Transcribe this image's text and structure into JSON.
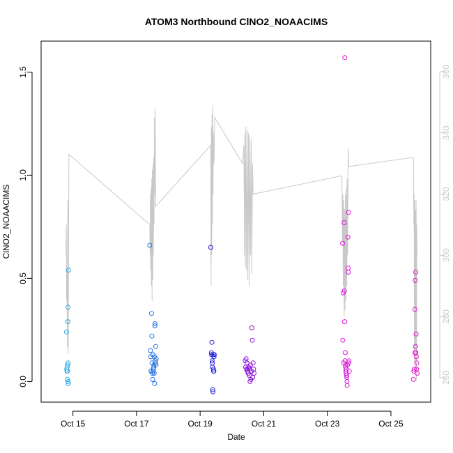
{
  "chart_data": {
    "type": "scatter",
    "title": "ATOM3 Northbound ClNO2_NOAACIMS",
    "xlabel": "Date",
    "ylabel": "ClNO2_NOAACIMS",
    "xlim": [
      "2017-10-14T00:00",
      "2017-10-26T06:00"
    ],
    "ylim": [
      -0.1,
      1.65
    ],
    "y_ticks": [
      0.0,
      0.5,
      1.0,
      1.5
    ],
    "x_ticks": [
      {
        "date": "2017-10-15",
        "label": "Oct 15"
      },
      {
        "date": "2017-10-17",
        "label": "Oct 17"
      },
      {
        "date": "2017-10-19",
        "label": "Oct 19"
      },
      {
        "date": "2017-10-21",
        "label": "Oct 21"
      },
      {
        "date": "2017-10-23",
        "label": "Oct 23"
      },
      {
        "date": "2017-10-25",
        "label": "Oct 25"
      }
    ],
    "grid": false,
    "secondary_axis": {
      "color": "#c8c8c8",
      "ylim": [
        252,
        370
      ],
      "ticks": [
        260,
        280,
        300,
        320,
        340,
        360
      ]
    },
    "flights": [
      {
        "color": "#2aa7e6",
        "points": [
          [
            "2017-10-14T19:10",
            0.24
          ],
          [
            "2017-10-14T19:20",
            0.06
          ],
          [
            "2017-10-14T19:30",
            0.05
          ],
          [
            "2017-10-14T19:40",
            0.07
          ],
          [
            "2017-10-14T19:45",
            0.01
          ],
          [
            "2017-10-14T19:50",
            0.05
          ],
          [
            "2017-10-14T20:00",
            0.08
          ],
          [
            "2017-10-14T20:10",
            0.29
          ],
          [
            "2017-10-14T20:15",
            0.36
          ],
          [
            "2017-10-14T20:20",
            0.09
          ],
          [
            "2017-10-14T20:25",
            0.0
          ],
          [
            "2017-10-14T20:30",
            -0.01
          ],
          [
            "2017-10-14T20:40",
            0.54
          ]
        ]
      },
      {
        "color": "#2270e0",
        "points": [
          [
            "2017-10-17T10:00",
            0.66
          ],
          [
            "2017-10-17T10:30",
            0.15
          ],
          [
            "2017-10-17T10:45",
            0.12
          ],
          [
            "2017-10-17T11:00",
            0.05
          ],
          [
            "2017-10-17T11:20",
            0.33
          ],
          [
            "2017-10-17T11:30",
            0.22
          ],
          [
            "2017-10-17T11:40",
            0.09
          ],
          [
            "2017-10-17T12:00",
            0.04
          ],
          [
            "2017-10-17T12:10",
            0.01
          ],
          [
            "2017-10-17T12:20",
            0.13
          ],
          [
            "2017-10-17T12:30",
            0.05
          ],
          [
            "2017-10-17T12:40",
            0.06
          ],
          [
            "2017-10-17T13:00",
            0.07
          ],
          [
            "2017-10-17T13:10",
            0.08
          ],
          [
            "2017-10-17T13:20",
            0.04
          ],
          [
            "2017-10-17T13:30",
            0.12
          ],
          [
            "2017-10-17T13:40",
            -0.01
          ],
          [
            "2017-10-17T13:50",
            0.27
          ],
          [
            "2017-10-17T14:00",
            0.28
          ],
          [
            "2017-10-17T14:10",
            0.1
          ],
          [
            "2017-10-17T14:20",
            0.09
          ],
          [
            "2017-10-17T14:30",
            0.17
          ],
          [
            "2017-10-17T14:40",
            0.08
          ],
          [
            "2017-10-17T14:50",
            0.11
          ]
        ]
      },
      {
        "color": "#2020d8",
        "points": [
          [
            "2017-10-19T08:00",
            0.65
          ],
          [
            "2017-10-19T08:30",
            0.14
          ],
          [
            "2017-10-19T08:40",
            0.13
          ],
          [
            "2017-10-19T08:50",
            0.19
          ],
          [
            "2017-10-19T09:00",
            0.1
          ],
          [
            "2017-10-19T09:10",
            0.09
          ],
          [
            "2017-10-19T09:20",
            0.07
          ],
          [
            "2017-10-19T09:30",
            -0.04
          ],
          [
            "2017-10-19T09:40",
            -0.05
          ],
          [
            "2017-10-19T09:50",
            0.13
          ],
          [
            "2017-10-19T10:00",
            0.06
          ],
          [
            "2017-10-19T10:10",
            0.05
          ],
          [
            "2017-10-19T10:20",
            0.05
          ],
          [
            "2017-10-19T10:30",
            0.12
          ],
          [
            "2017-10-19T10:40",
            0.13
          ]
        ]
      },
      {
        "color": "#8a14d8",
        "points": [
          [
            "2017-10-20T10:00",
            0.1
          ],
          [
            "2017-10-20T10:20",
            0.07
          ],
          [
            "2017-10-20T10:40",
            0.11
          ],
          [
            "2017-10-20T11:00",
            0.06
          ],
          [
            "2017-10-20T11:20",
            0.09
          ],
          [
            "2017-10-20T11:40",
            0.05
          ],
          [
            "2017-10-20T12:00",
            0.06
          ],
          [
            "2017-10-20T12:20",
            0.04
          ],
          [
            "2017-10-20T12:40",
            0.07
          ],
          [
            "2017-10-20T13:00",
            0.03
          ],
          [
            "2017-10-20T13:20",
            0.06
          ],
          [
            "2017-10-20T13:40",
            0.0
          ],
          [
            "2017-10-20T14:00",
            0.08
          ],
          [
            "2017-10-20T14:20",
            0.01
          ],
          [
            "2017-10-20T14:40",
            0.05
          ],
          [
            "2017-10-20T15:00",
            0.26
          ],
          [
            "2017-10-20T15:20",
            0.2
          ],
          [
            "2017-10-20T15:40",
            0.02
          ],
          [
            "2017-10-20T16:00",
            0.09
          ],
          [
            "2017-10-20T16:20",
            0.06
          ],
          [
            "2017-10-20T16:40",
            0.04
          ]
        ]
      },
      {
        "color": "#d814d8",
        "points": [
          [
            "2017-10-23T11:30",
            0.67
          ],
          [
            "2017-10-23T11:40",
            0.2
          ],
          [
            "2017-10-23T12:00",
            0.43
          ],
          [
            "2017-10-23T12:20",
            0.09
          ],
          [
            "2017-10-23T12:40",
            0.77
          ],
          [
            "2017-10-23T12:50",
            0.44
          ],
          [
            "2017-10-23T13:00",
            0.29
          ],
          [
            "2017-10-23T13:10",
            1.57
          ],
          [
            "2017-10-23T13:20",
            0.1
          ],
          [
            "2017-10-23T13:30",
            0.14
          ],
          [
            "2017-10-23T13:40",
            0.07
          ],
          [
            "2017-10-23T13:50",
            0.08
          ],
          [
            "2017-10-23T14:00",
            0.05
          ],
          [
            "2017-10-23T14:10",
            0.04
          ],
          [
            "2017-10-23T14:20",
            0.06
          ],
          [
            "2017-10-23T14:30",
            0.03
          ],
          [
            "2017-10-23T14:40",
            0.02
          ],
          [
            "2017-10-23T14:50",
            0.0
          ],
          [
            "2017-10-23T15:00",
            -0.02
          ],
          [
            "2017-10-23T15:20",
            0.08
          ],
          [
            "2017-10-23T15:30",
            0.7
          ],
          [
            "2017-10-23T15:40",
            0.55
          ],
          [
            "2017-10-23T15:50",
            0.53
          ],
          [
            "2017-10-23T16:00",
            0.82
          ],
          [
            "2017-10-23T16:10",
            0.09
          ],
          [
            "2017-10-23T16:20",
            0.1
          ],
          [
            "2017-10-23T16:30",
            0.05
          ]
        ]
      },
      {
        "color": "#e614d0",
        "points": [
          [
            "2017-10-25T17:00",
            0.01
          ],
          [
            "2017-10-25T17:20",
            0.05
          ],
          [
            "2017-10-25T17:40",
            0.06
          ],
          [
            "2017-10-25T18:00",
            0.35
          ],
          [
            "2017-10-25T18:10",
            0.14
          ],
          [
            "2017-10-25T18:20",
            0.49
          ],
          [
            "2017-10-25T18:30",
            0.17
          ],
          [
            "2017-10-25T18:40",
            0.53
          ],
          [
            "2017-10-25T18:50",
            0.14
          ],
          [
            "2017-10-25T19:00",
            0.23
          ],
          [
            "2017-10-25T19:10",
            0.12
          ],
          [
            "2017-10-25T19:20",
            0.06
          ],
          [
            "2017-10-25T19:30",
            0.09
          ],
          [
            "2017-10-25T19:40",
            0.04
          ]
        ]
      }
    ],
    "secondary_line": {
      "color": "#c8c8c8",
      "points": [
        [
          "2017-10-14T18:40",
          300
        ],
        [
          "2017-10-14T19:00",
          310
        ],
        [
          "2017-10-14T19:15",
          285
        ],
        [
          "2017-10-14T19:30",
          295
        ],
        [
          "2017-10-14T19:45",
          270
        ],
        [
          "2017-10-14T20:00",
          305
        ],
        [
          "2017-10-14T20:15",
          318
        ],
        [
          "2017-10-14T20:30",
          268
        ],
        [
          "2017-10-14T20:45",
          314
        ],
        [
          "2017-10-14T21:00",
          333
        ],
        [
          "2017-10-17T10:00",
          310
        ],
        [
          "2017-10-17T10:15",
          300
        ],
        [
          "2017-10-17T10:30",
          320
        ],
        [
          "2017-10-17T10:45",
          295
        ],
        [
          "2017-10-17T11:00",
          322
        ],
        [
          "2017-10-17T11:15",
          290
        ],
        [
          "2017-10-17T11:30",
          325
        ],
        [
          "2017-10-17T11:45",
          285
        ],
        [
          "2017-10-17T12:00",
          328
        ],
        [
          "2017-10-17T12:15",
          292
        ],
        [
          "2017-10-17T12:30",
          330
        ],
        [
          "2017-10-17T12:45",
          300
        ],
        [
          "2017-10-17T13:00",
          332
        ],
        [
          "2017-10-17T13:15",
          310
        ],
        [
          "2017-10-17T13:30",
          345
        ],
        [
          "2017-10-17T13:45",
          320
        ],
        [
          "2017-10-17T14:00",
          348
        ],
        [
          "2017-10-17T14:30",
          316
        ],
        [
          "2017-10-19T08:00",
          336
        ],
        [
          "2017-10-19T08:15",
          290
        ],
        [
          "2017-10-19T08:30",
          342
        ],
        [
          "2017-10-19T08:45",
          300
        ],
        [
          "2017-10-19T09:00",
          346
        ],
        [
          "2017-10-19T09:15",
          310
        ],
        [
          "2017-10-19T09:30",
          349
        ],
        [
          "2017-10-19T09:45",
          320
        ],
        [
          "2017-10-19T10:00",
          340
        ],
        [
          "2017-10-19T10:30",
          330
        ],
        [
          "2017-10-19T11:00",
          345
        ],
        [
          "2017-10-20T08:00",
          330
        ],
        [
          "2017-10-20T09:00",
          336
        ],
        [
          "2017-10-20T09:30",
          300
        ],
        [
          "2017-10-20T09:45",
          340
        ],
        [
          "2017-10-20T10:00",
          296
        ],
        [
          "2017-10-20T10:30",
          342
        ],
        [
          "2017-10-20T11:00",
          295
        ],
        [
          "2017-10-20T11:30",
          341
        ],
        [
          "2017-10-20T12:00",
          292
        ],
        [
          "2017-10-20T12:30",
          340
        ],
        [
          "2017-10-20T13:00",
          290
        ],
        [
          "2017-10-20T13:30",
          339
        ],
        [
          "2017-10-20T14:00",
          300
        ],
        [
          "2017-10-20T14:30",
          338
        ],
        [
          "2017-10-20T15:00",
          294
        ],
        [
          "2017-10-20T15:30",
          330
        ],
        [
          "2017-10-20T16:00",
          320
        ],
        [
          "2017-10-23T11:00",
          326
        ],
        [
          "2017-10-23T11:20",
          305
        ],
        [
          "2017-10-23T11:40",
          320
        ],
        [
          "2017-10-23T12:00",
          290
        ],
        [
          "2017-10-23T12:20",
          318
        ],
        [
          "2017-10-23T12:40",
          280
        ],
        [
          "2017-10-23T13:00",
          315
        ],
        [
          "2017-10-23T13:20",
          282
        ],
        [
          "2017-10-23T13:40",
          320
        ],
        [
          "2017-10-23T14:00",
          285
        ],
        [
          "2017-10-23T14:20",
          322
        ],
        [
          "2017-10-23T14:40",
          290
        ],
        [
          "2017-10-23T15:00",
          325
        ],
        [
          "2017-10-23T15:20",
          300
        ],
        [
          "2017-10-23T15:40",
          335
        ],
        [
          "2017-10-23T16:00",
          329
        ],
        [
          "2017-10-25T17:00",
          332
        ],
        [
          "2017-10-25T17:15",
          310
        ],
        [
          "2017-10-25T17:30",
          320
        ],
        [
          "2017-10-25T17:45",
          265
        ],
        [
          "2017-10-25T18:00",
          318
        ],
        [
          "2017-10-25T18:15",
          270
        ],
        [
          "2017-10-25T18:30",
          315
        ],
        [
          "2017-10-25T18:45",
          262
        ],
        [
          "2017-10-25T19:00",
          318
        ],
        [
          "2017-10-25T19:15",
          259
        ],
        [
          "2017-10-25T19:30",
          310
        ],
        [
          "2017-10-25T19:40",
          300
        ]
      ]
    }
  }
}
